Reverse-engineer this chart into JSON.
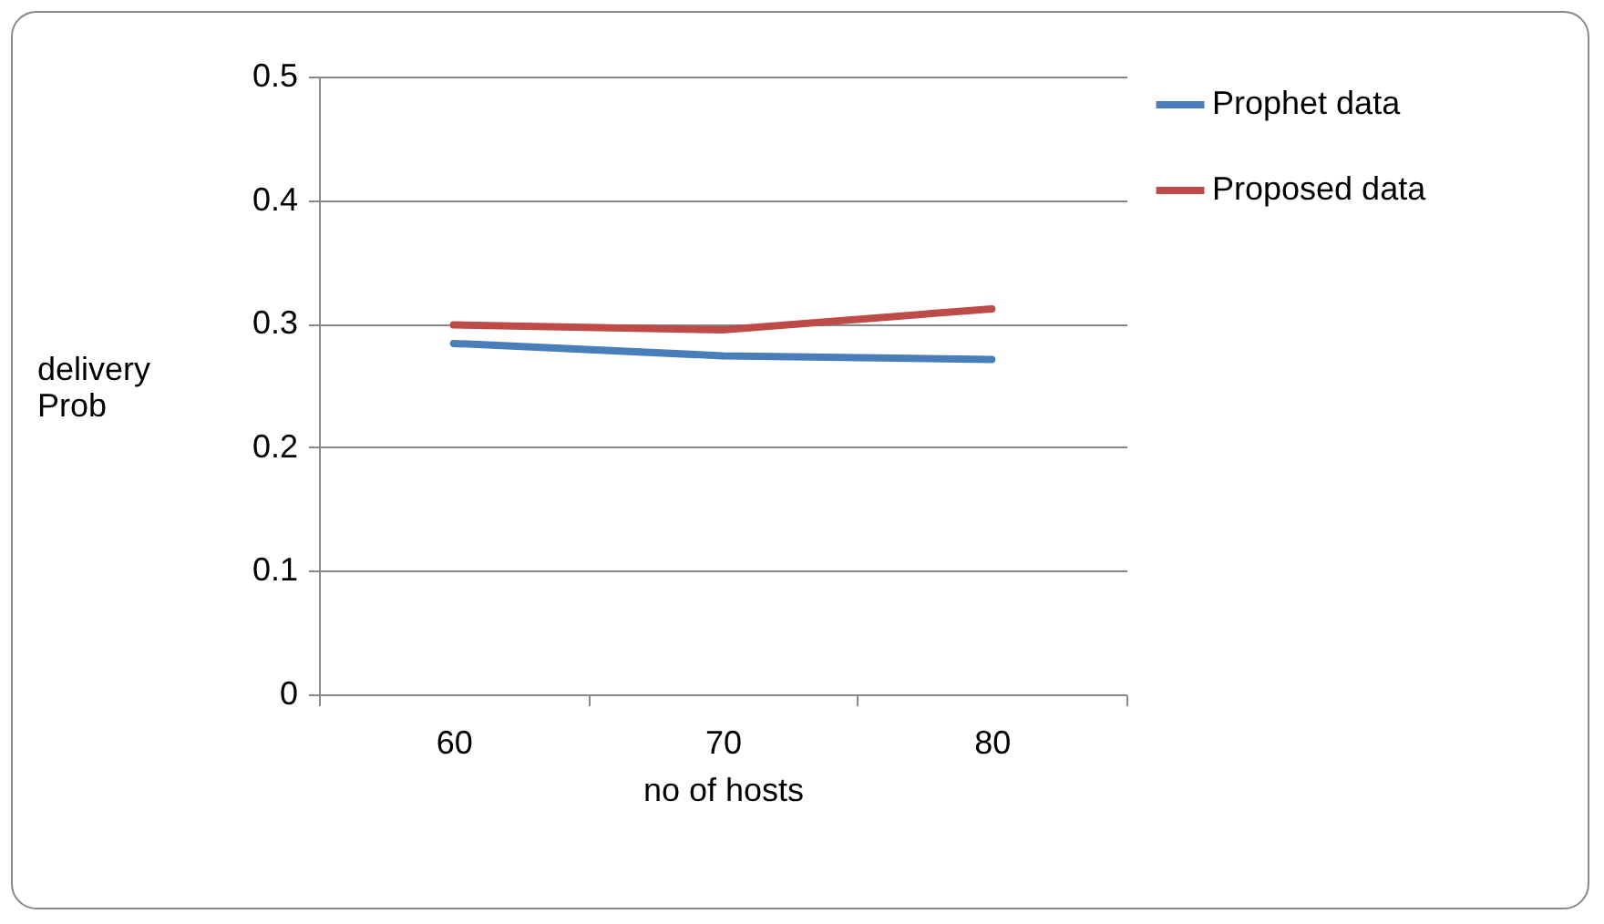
{
  "chart_data": {
    "type": "line",
    "xlabel": "no of hosts",
    "ylabel": "delivery Prob",
    "categories": [
      "60",
      "70",
      "80"
    ],
    "series": [
      {
        "name": "Prophet data",
        "color": "#4a7ebb",
        "values": [
          0.284,
          0.274,
          0.271
        ]
      },
      {
        "name": "Proposed data",
        "color": "#be4b48",
        "values": [
          0.299,
          0.295,
          0.312
        ]
      }
    ],
    "ylim": [
      0,
      0.5
    ],
    "yticks": [
      0,
      0.1,
      0.2,
      0.3,
      0.4,
      0.5
    ],
    "grid": "y",
    "legend": "right",
    "marker": "none",
    "line_style": "solid"
  }
}
